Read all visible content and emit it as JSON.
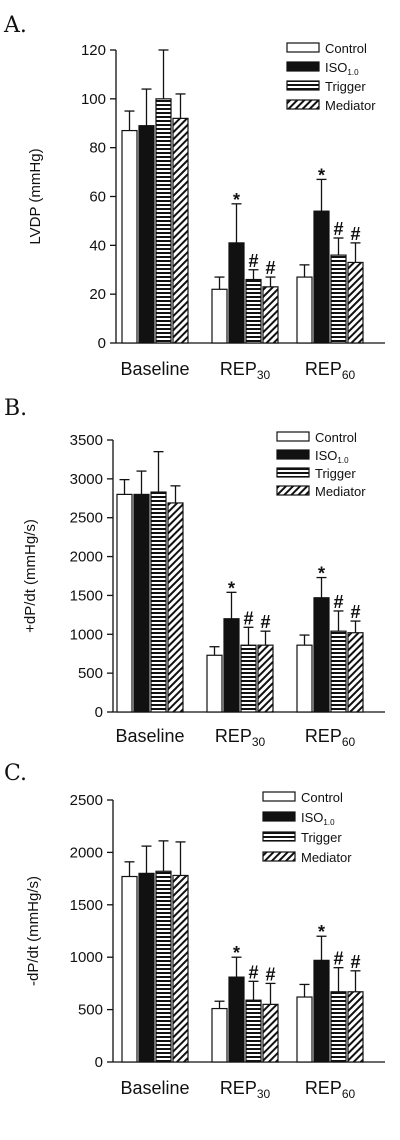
{
  "legend": [
    {
      "base": "Control",
      "sub": "",
      "fill": "white"
    },
    {
      "base": "ISO",
      "sub": "1.0",
      "fill": "black"
    },
    {
      "base": "Trigger",
      "sub": "",
      "fill": "hstripe"
    },
    {
      "base": "Mediator",
      "sub": "",
      "fill": "diag"
    }
  ],
  "chart_data": [
    {
      "panel": "A.",
      "type": "bar",
      "ylabel": "LVDP (mmHg)",
      "ylim": [
        0,
        120
      ],
      "yticks": [
        0,
        20,
        40,
        60,
        80,
        100,
        120
      ],
      "categories": [
        {
          "base": "Baseline",
          "sub": ""
        },
        {
          "base": "REP",
          "sub": "30"
        },
        {
          "base": "REP",
          "sub": "60"
        }
      ],
      "series": [
        {
          "name": "Control",
          "values": [
            87,
            22,
            27
          ],
          "errors": [
            8,
            5,
            5
          ]
        },
        {
          "name": "ISO1.0",
          "values": [
            89,
            41,
            54
          ],
          "errors": [
            15,
            16,
            13
          ]
        },
        {
          "name": "Trigger",
          "values": [
            100,
            26,
            36
          ],
          "errors": [
            20,
            4,
            7
          ]
        },
        {
          "name": "Mediator",
          "values": [
            92,
            23,
            33
          ],
          "errors": [
            10,
            4,
            8
          ]
        }
      ],
      "annotations": [
        {
          "group": 1,
          "bar": 1,
          "text": "*"
        },
        {
          "group": 1,
          "bar": 2,
          "text": "#"
        },
        {
          "group": 1,
          "bar": 3,
          "text": "#"
        },
        {
          "group": 2,
          "bar": 1,
          "text": "*"
        },
        {
          "group": 2,
          "bar": 2,
          "text": "#"
        },
        {
          "group": 2,
          "bar": 3,
          "text": "#"
        }
      ]
    },
    {
      "panel": "B.",
      "type": "bar",
      "ylabel": "+dP/dt (mmHg/s)",
      "ylim": [
        0,
        3500
      ],
      "yticks": [
        0,
        500,
        1000,
        1500,
        2000,
        2500,
        3000,
        3500
      ],
      "categories": [
        {
          "base": "Baseline",
          "sub": ""
        },
        {
          "base": "REP",
          "sub": "30"
        },
        {
          "base": "REP",
          "sub": "60"
        }
      ],
      "series": [
        {
          "name": "Control",
          "values": [
            2800,
            730,
            860
          ],
          "errors": [
            190,
            110,
            130
          ]
        },
        {
          "name": "ISO1.0",
          "values": [
            2800,
            1200,
            1470
          ],
          "errors": [
            300,
            340,
            260
          ]
        },
        {
          "name": "Trigger",
          "values": [
            2830,
            860,
            1040
          ],
          "errors": [
            520,
            230,
            260
          ]
        },
        {
          "name": "Mediator",
          "values": [
            2690,
            860,
            1020
          ],
          "errors": [
            220,
            180,
            150
          ]
        }
      ],
      "annotations": [
        {
          "group": 1,
          "bar": 1,
          "text": "*"
        },
        {
          "group": 1,
          "bar": 2,
          "text": "#"
        },
        {
          "group": 1,
          "bar": 3,
          "text": "#"
        },
        {
          "group": 2,
          "bar": 1,
          "text": "*"
        },
        {
          "group": 2,
          "bar": 2,
          "text": "#"
        },
        {
          "group": 2,
          "bar": 3,
          "text": "#"
        }
      ]
    },
    {
      "panel": "C.",
      "type": "bar",
      "ylabel": "-dP/dt (mmHg/s)",
      "ylim": [
        0,
        2500
      ],
      "yticks": [
        0,
        500,
        1000,
        1500,
        2000,
        2500
      ],
      "categories": [
        {
          "base": "Baseline",
          "sub": ""
        },
        {
          "base": "REP",
          "sub": "30"
        },
        {
          "base": "REP",
          "sub": "60"
        }
      ],
      "series": [
        {
          "name": "Control",
          "values": [
            1770,
            510,
            620
          ],
          "errors": [
            140,
            70,
            120
          ]
        },
        {
          "name": "ISO1.0",
          "values": [
            1800,
            810,
            970
          ],
          "errors": [
            260,
            190,
            230
          ]
        },
        {
          "name": "Trigger",
          "values": [
            1820,
            590,
            670
          ],
          "errors": [
            290,
            180,
            230
          ]
        },
        {
          "name": "Mediator",
          "values": [
            1780,
            550,
            670
          ],
          "errors": [
            320,
            200,
            200
          ]
        }
      ],
      "annotations": [
        {
          "group": 1,
          "bar": 1,
          "text": "*"
        },
        {
          "group": 1,
          "bar": 2,
          "text": "#"
        },
        {
          "group": 1,
          "bar": 3,
          "text": "#"
        },
        {
          "group": 2,
          "bar": 1,
          "text": "*"
        },
        {
          "group": 2,
          "bar": 2,
          "text": "#"
        },
        {
          "group": 2,
          "bar": 3,
          "text": "#"
        }
      ]
    }
  ]
}
